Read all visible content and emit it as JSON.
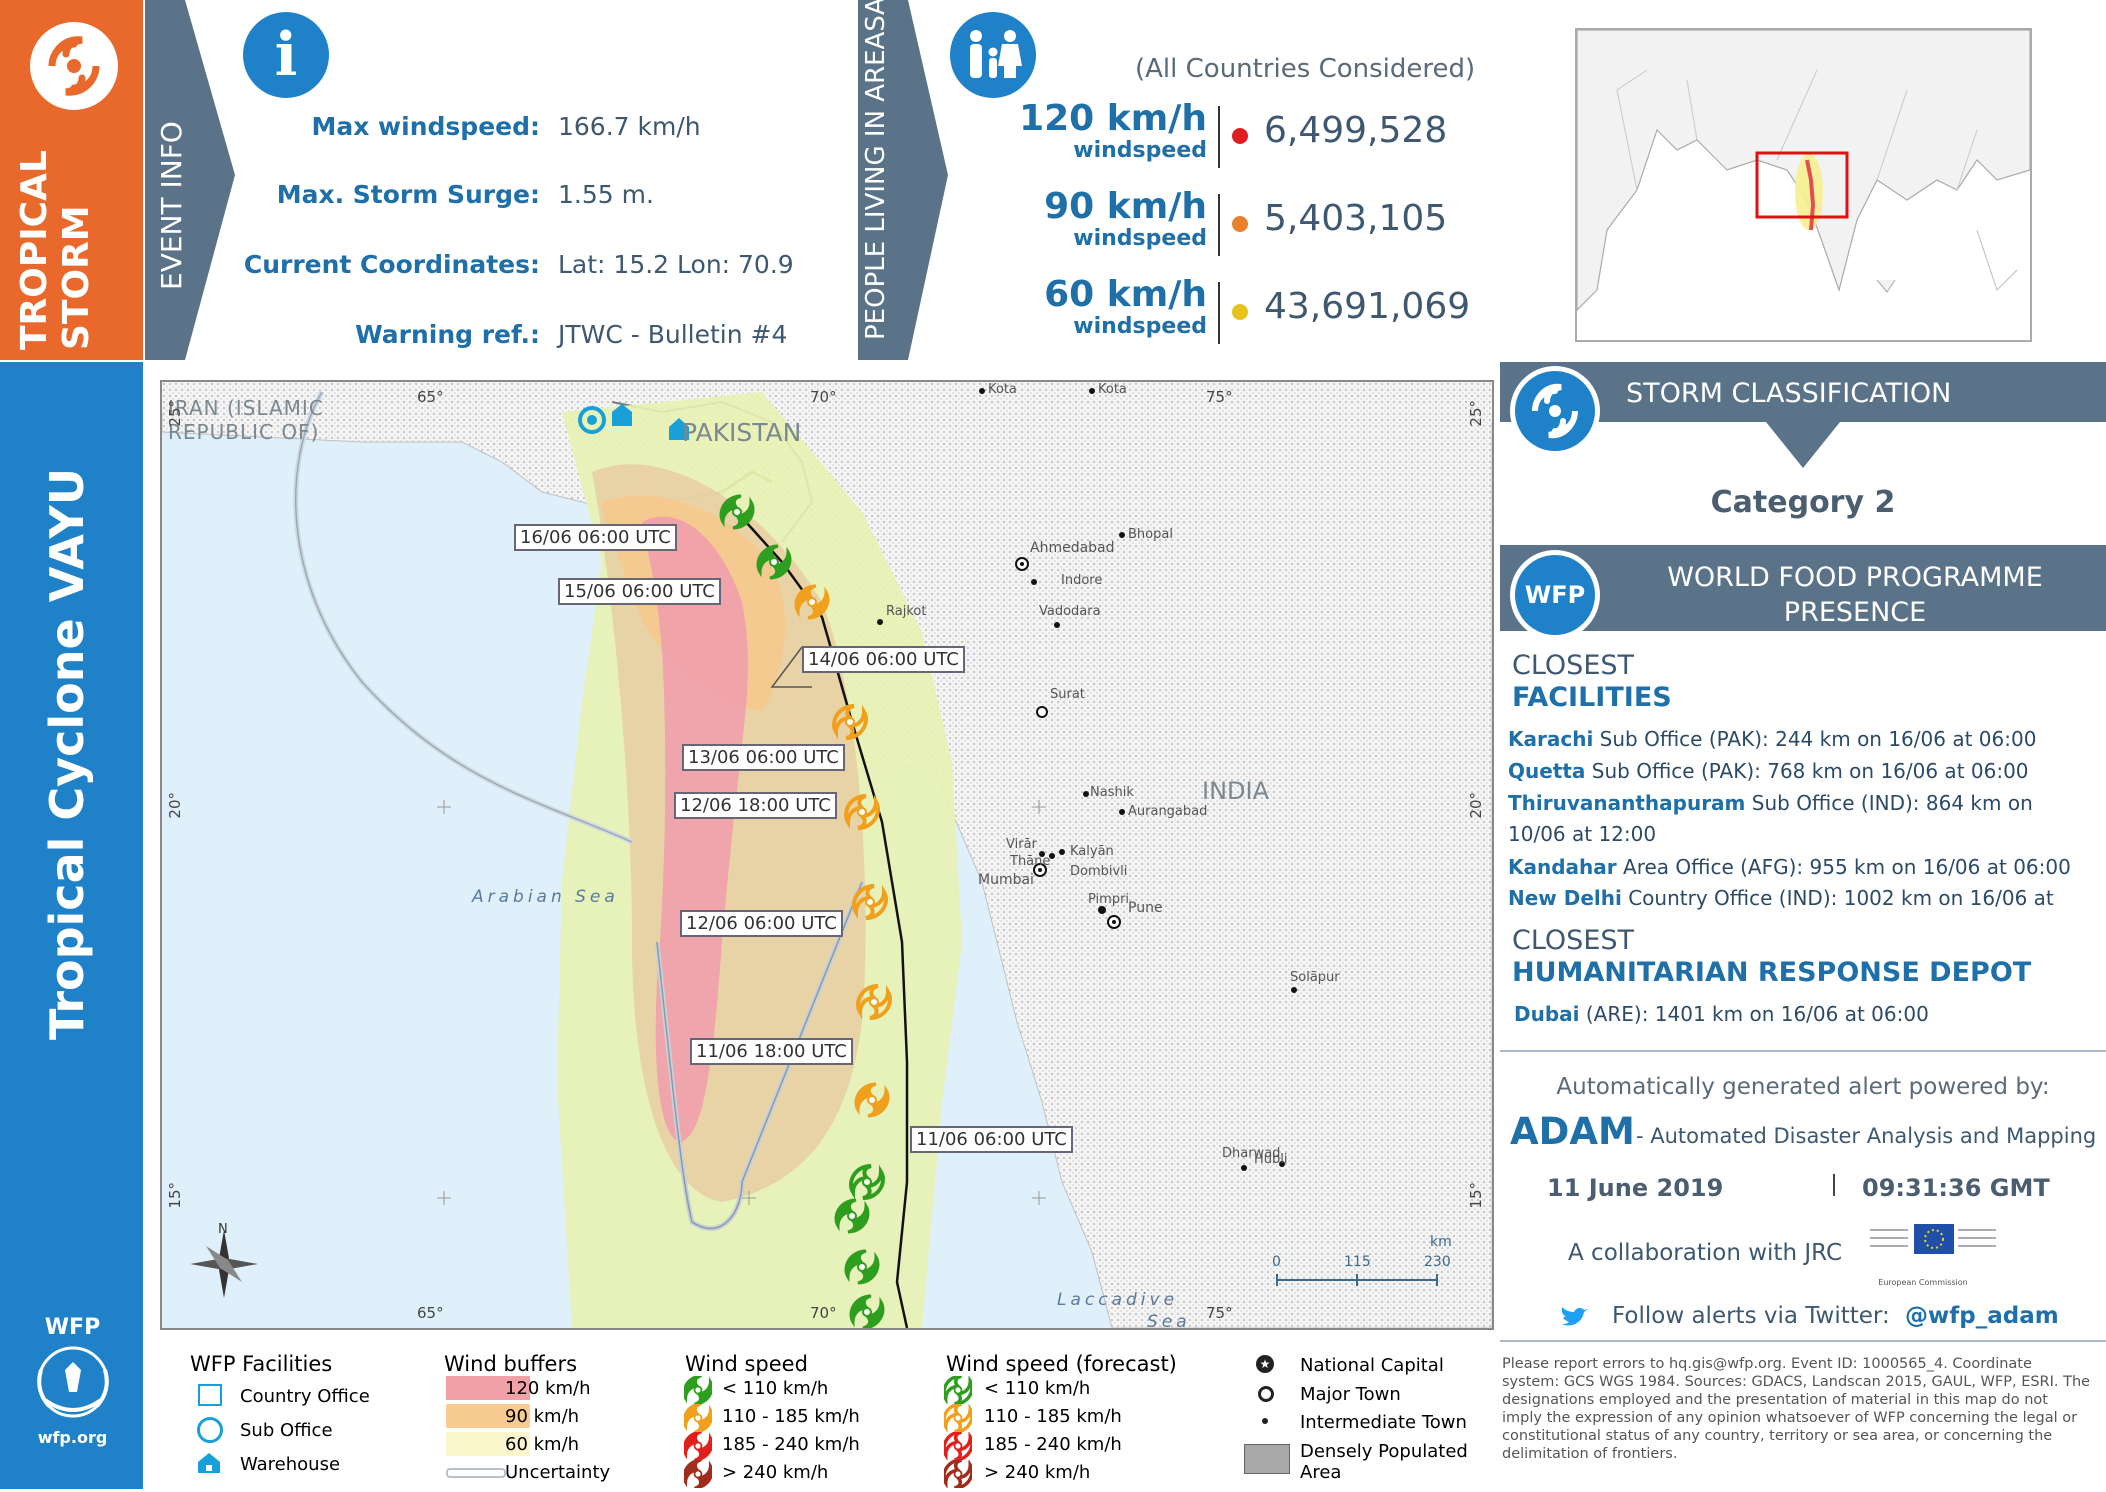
{
  "header": {
    "storm_type": "TROPICAL\nSTORM",
    "storm_type_l1": "TROPICAL",
    "storm_type_l2": "STORM",
    "title": "Tropical Cyclone VAYU",
    "event_info_label": "EVENT INFO",
    "people_label_l1": "PEOPLE LIVING IN AREAS",
    "people_label_l2": "AT RISK"
  },
  "event_info": {
    "max_wind_label": "Max windspeed:",
    "max_wind_value": "166.7 km/h",
    "surge_label": "Max. Storm Surge:",
    "surge_value": "1.55 m.",
    "coords_label": "Current Coordinates:",
    "coords_value": "Lat: 15.2 Lon: 70.9",
    "warning_label": "Warning ref.:",
    "warning_value": "JTWC - Bulletin #4"
  },
  "population": {
    "note": "(All Countries Considered)",
    "rows": [
      {
        "speed": "120 km/h",
        "unit": "windspeed",
        "value": "6,499,528",
        "color": "#e02020"
      },
      {
        "speed": "90 km/h",
        "unit": "windspeed",
        "value": "5,403,105",
        "color": "#e8822c"
      },
      {
        "speed": "60 km/h",
        "unit": "windspeed",
        "value": "43,691,069",
        "color": "#e8c21c"
      }
    ]
  },
  "map": {
    "lon_labels": [
      "65°",
      "70°",
      "75°",
      "65°",
      "70°",
      "75°"
    ],
    "lat_labels": [
      "25°",
      "20°",
      "15°",
      "25°",
      "20°",
      "15°"
    ],
    "country_labels": [
      "IRAN (ISLAMIC",
      "REPUBLIC OF)",
      "PAKISTAN",
      "INDIA"
    ],
    "sea_labels": [
      "Arabian Sea",
      "Laccadive",
      "Sea"
    ],
    "cities": [
      "Kota",
      "Kota",
      "Ahmedabad",
      "Bhopal",
      "Indore",
      "Vadodara",
      "Rajkot",
      "Surat",
      "Nashik",
      "Aurangabad",
      "Virār",
      "Thāne",
      "Kalyān",
      "Dombivli",
      "Mumbai",
      "Pimpri",
      "Pune",
      "Solāpur",
      "Dharwad",
      "Hubli"
    ],
    "track_labels": [
      "16/06 06:00 UTC",
      "15/06 06:00 UTC",
      "14/06 06:00 UTC",
      "13/06 06:00 UTC",
      "12/06 18:00 UTC",
      "12/06 06:00 UTC",
      "11/06 18:00 UTC",
      "11/06 06:00 UTC"
    ],
    "scale_title": "km",
    "scale_ticks": [
      "0",
      "115",
      "230"
    ],
    "north": "N"
  },
  "classification": {
    "heading": "STORM CLASSIFICATION",
    "category": "Category 2"
  },
  "wfp_presence": {
    "heading_l1": "WORLD FOOD PROGRAMME",
    "heading_l2": "PRESENCE",
    "logo_text": "WFP",
    "closest_label": "CLOSEST",
    "facilities_label": "FACILITIES",
    "facilities": [
      {
        "name": "Karachi",
        "rest": " Sub Office (PAK): 244 km on 16/06 at 06:00"
      },
      {
        "name": "Quetta",
        "rest": " Sub Office (PAK): 768 km on 16/06 at 06:00"
      },
      {
        "name": "Thiruvananthapuram",
        "rest": " Sub Office (IND): 864 km on"
      },
      {
        "name": "",
        "rest": "10/06 at 12:00"
      },
      {
        "name": "Kandahar",
        "rest": " Area Office (AFG): 955 km on 16/06 at 06:00"
      },
      {
        "name": "New Delhi",
        "rest": " Country Office (IND): 1002 km on 16/06 at"
      }
    ],
    "closest2_label": "CLOSEST",
    "depot_label": "HUMANITARIAN RESPONSE DEPOT",
    "depot": {
      "name": "Dubai",
      "rest": " (ARE): 1401 km on 16/06 at 06:00"
    }
  },
  "adam": {
    "powered_by": "Automatically generated alert powered by:",
    "name": "ADAM",
    "subtitle": "- Automated Disaster Analysis and Mapping",
    "date": "11 June 2019",
    "time": "09:31:36 GMT",
    "collab": "A collaboration with JRC",
    "eu_text": "European Commission",
    "twitter_text": "Follow alerts via Twitter:",
    "twitter_handle": "@wfp_adam"
  },
  "wfp_logo": {
    "name": "WFP",
    "url": "wfp.org"
  },
  "legend": {
    "facilities_title": "WFP Facilities",
    "facilities": [
      "Country Office",
      "Sub Office",
      "Warehouse"
    ],
    "buffers_title": "Wind buffers",
    "buffers": [
      {
        "label": "120 km/h",
        "color": "#f2a0a8"
      },
      {
        "label": "90 km/h",
        "color": "#f8cc90"
      },
      {
        "label": "60 km/h",
        "color": "#fbf6cc"
      }
    ],
    "uncertainty": "Uncertainty",
    "wind_title": "Wind speed",
    "wind_forecast_title": "Wind speed (forecast)",
    "wind_classes": [
      {
        "label": "< 110 km/h",
        "color": "#2e9e1e"
      },
      {
        "label": "110 - 185 km/h",
        "color": "#f0a01c"
      },
      {
        "label": "185 - 240 km/h",
        "color": "#e0201c"
      },
      {
        "label": "> 240 km/h",
        "color": "#a02c1c"
      }
    ],
    "places": [
      "National Capital",
      "Major Town",
      "Intermediate Town",
      "Densely Populated",
      "Area"
    ]
  },
  "disclaimer": "Please report errors to hq.gis@wfp.org. Event ID: 1000565_4. Coordinate system: GCS WGS 1984. Sources: GDACS, Landscan 2015, GAUL, WFP, ESRI. The designations employed and the presentation of material in this map do not imply the expression of any opinion whatsoever of WFP concerning the legal or constitutional status of any country, territory or sea area, or concerning the delimitation of frontiers."
}
